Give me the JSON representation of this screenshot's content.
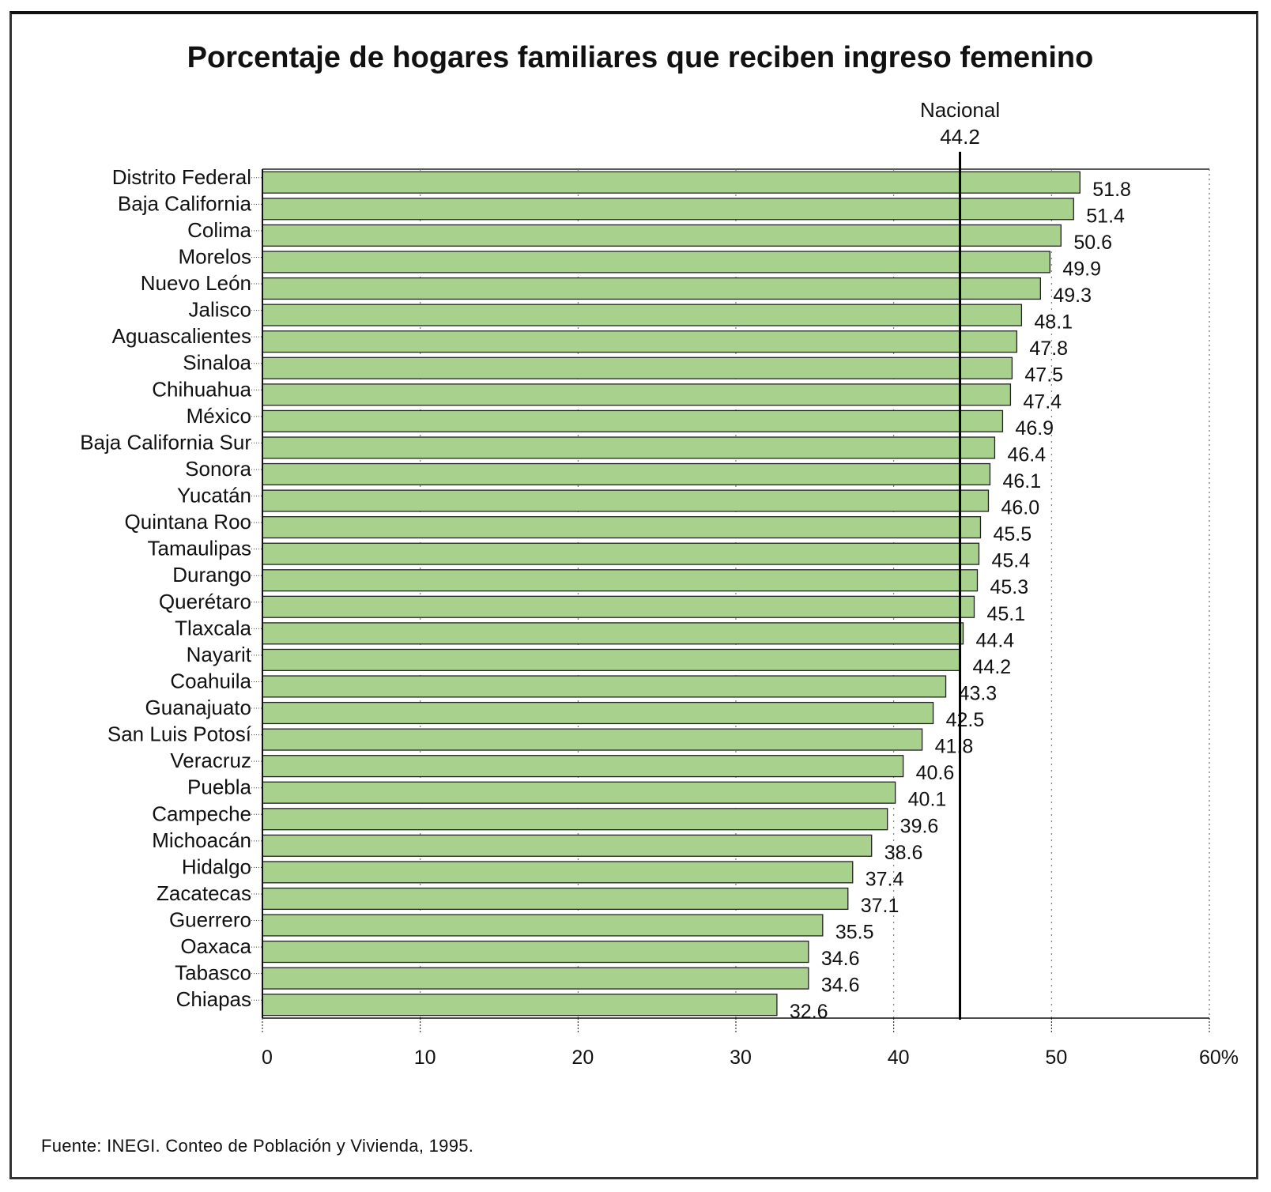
{
  "chart_data": {
    "type": "bar",
    "orientation": "horizontal",
    "title": "Porcentaje de hogares familiares que reciben ingreso femenino",
    "categories": [
      "Distrito Federal",
      "Baja California",
      "Colima",
      "Morelos",
      "Nuevo León",
      "Jalisco",
      "Aguascalientes",
      "Sinaloa",
      "Chihuahua",
      "México",
      "Baja California Sur",
      "Sonora",
      "Yucatán",
      "Quintana Roo",
      "Tamaulipas",
      "Durango",
      "Querétaro",
      "Tlaxcala",
      "Nayarit",
      "Coahuila",
      "Guanajuato",
      "San Luis Potosí",
      "Veracruz",
      "Puebla",
      "Campeche",
      "Michoacán",
      "Hidalgo",
      "Zacatecas",
      "Guerrero",
      "Oaxaca",
      "Tabasco",
      "Chiapas"
    ],
    "values": [
      51.8,
      51.4,
      50.6,
      49.9,
      49.3,
      48.1,
      47.8,
      47.5,
      47.4,
      46.9,
      46.4,
      46.1,
      46.0,
      45.5,
      45.4,
      45.3,
      45.1,
      44.4,
      44.2,
      43.3,
      42.5,
      41.8,
      40.6,
      40.1,
      39.6,
      38.6,
      37.4,
      37.1,
      35.5,
      34.6,
      34.6,
      32.6
    ],
    "value_labels": [
      "51.8",
      "51.4",
      "50.6",
      "49.9",
      "49.3",
      "48.1",
      "47.8",
      "47.5",
      "47.4",
      "46.9",
      "46.4",
      "46.1",
      "46.0",
      "45.5",
      "45.4",
      "45.3",
      "45.1",
      "44.4",
      "44.2",
      "43.3",
      "42.5",
      "41.8",
      "40.6",
      "40.1",
      "39.6",
      "38.6",
      "37.4",
      "37.1",
      "35.5",
      "34.6",
      "34.6",
      "32.6"
    ],
    "xlim": [
      0,
      60
    ],
    "x_ticks": [
      0,
      10,
      20,
      30,
      40,
      50,
      60
    ],
    "x_tick_labels": [
      "0",
      "10",
      "20",
      "30",
      "40",
      "50",
      "60%"
    ],
    "reference_line": {
      "label": "Nacional",
      "value": 44.2,
      "value_label": "44.2"
    },
    "grid": "dotted vertical",
    "bar_color": "#a9d18e",
    "bar_edge_color": "#222222"
  },
  "source": "Fuente: INEGI. Conteo de Población y Vivienda, 1995."
}
